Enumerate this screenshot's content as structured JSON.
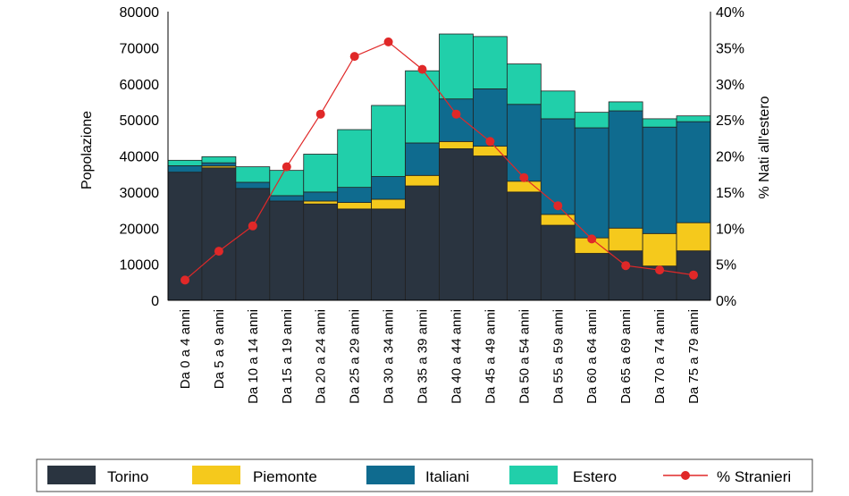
{
  "chart_data": {
    "type": "bar",
    "stacked": true,
    "categories": [
      "Da 0 a 4 anni",
      "Da 5 a 9 anni",
      "Da 10 a 14 anni",
      "Da 15 a 19 anni",
      "Da 20 a 24 anni",
      "Da 25 a 29 anni",
      "Da 30 a 34 anni",
      "Da 35 a 39 anni",
      "Da 40 a 44 anni",
      "Da 45 a 49 anni",
      "Da 50 a 54 anni",
      "Da 55 a 59 anni",
      "Da 60 a 64 anni",
      "Da 65 a 69 anni",
      "Da 70 a 74 anni",
      "Da 75 a 79 anni"
    ],
    "series": [
      {
        "name": "Torino",
        "color": "#2a3440",
        "values": [
          35500,
          36700,
          31000,
          27500,
          26700,
          25300,
          25300,
          31700,
          42000,
          40000,
          30000,
          20800,
          13000,
          13700,
          9500,
          13700
        ]
      },
      {
        "name": "Piemonte",
        "color": "#f5c91c",
        "values": [
          0,
          500,
          0,
          0,
          800,
          1800,
          2700,
          2900,
          2000,
          2700,
          3000,
          3000,
          4300,
          6300,
          9000,
          7800
        ]
      },
      {
        "name": "Italiani",
        "color": "#0f6b8f",
        "values": [
          1800,
          900,
          1700,
          1500,
          2500,
          4200,
          6300,
          9000,
          11800,
          15900,
          21300,
          26500,
          30500,
          32500,
          29500,
          28000
        ]
      },
      {
        "name": "Estero",
        "color": "#21cfaa",
        "values": [
          1500,
          1700,
          4300,
          7000,
          10500,
          16000,
          19700,
          20000,
          18000,
          14500,
          11200,
          7700,
          4300,
          2500,
          2300,
          1600
        ]
      }
    ],
    "line_series": {
      "name": "% Stranieri",
      "color": "#e02828",
      "axis": "right",
      "values": [
        2.8,
        6.8,
        10.3,
        18.5,
        25.8,
        33.8,
        35.8,
        32.0,
        25.8,
        22.0,
        17.0,
        13.1,
        8.5,
        4.8,
        4.2,
        3.5
      ]
    },
    "ylabel": "Popolazione",
    "y2label": "% Nati all'estero",
    "ylim": [
      0,
      80000
    ],
    "y2lim": [
      0,
      40
    ],
    "yticks": [
      "0",
      "10000",
      "20000",
      "30000",
      "40000",
      "50000",
      "60000",
      "70000",
      "80000"
    ],
    "y2ticks": [
      "0%",
      "5%",
      "10%",
      "15%",
      "20%",
      "25%",
      "30%",
      "35%",
      "40%"
    ],
    "legend": {
      "position": "bottom",
      "entries": [
        "Torino",
        "Piemonte",
        "Italiani",
        "Estero",
        "% Stranieri"
      ]
    },
    "grid": false
  }
}
